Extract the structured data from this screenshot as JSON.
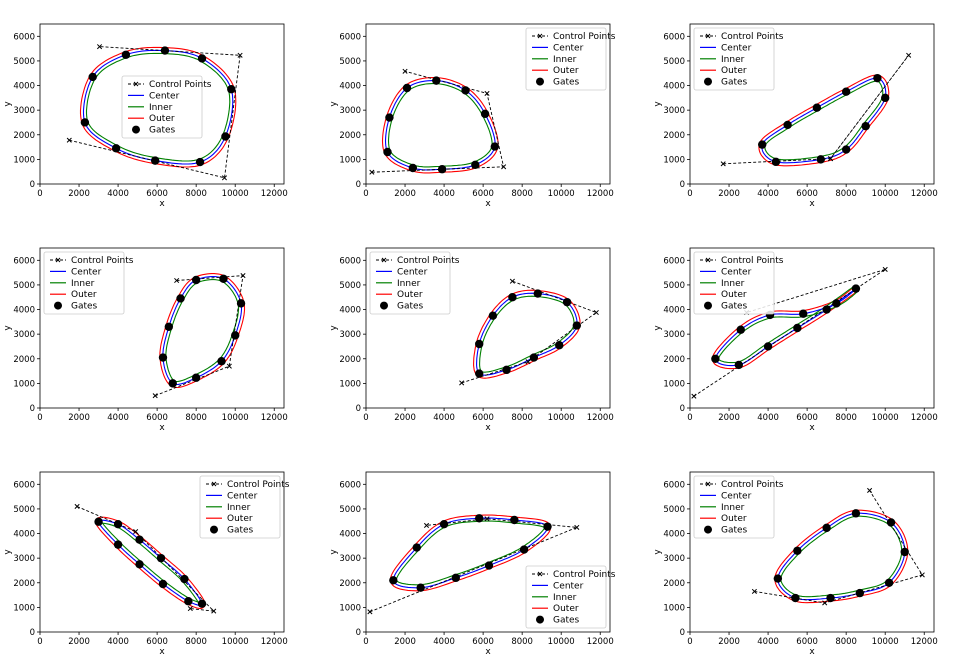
{
  "figure": {
    "legend_labels": {
      "control": "Control Points",
      "center": "Center",
      "inner": "Inner",
      "outer": "Outer",
      "gates": "Gates"
    },
    "colors": {
      "control": "#000000",
      "center": "#0000ff",
      "inner": "#008000",
      "outer": "#ff0000",
      "gates": "#000000"
    }
  },
  "chart_data": [
    {
      "type": "line",
      "xlabel": "x",
      "ylabel": "y",
      "xlim": [
        0,
        12500
      ],
      "ylim": [
        0,
        6500
      ],
      "xticks": [
        0,
        2000,
        4000,
        6000,
        8000,
        10000,
        12000
      ],
      "yticks": [
        0,
        1000,
        2000,
        3000,
        4000,
        5000,
        6000
      ],
      "legend_position": "center",
      "control_points": [
        [
          1500,
          1780
        ],
        [
          9450,
          250
        ],
        [
          10250,
          5230
        ],
        [
          3050,
          5580
        ]
      ],
      "gates": [
        [
          2300,
          2500
        ],
        [
          2700,
          4350
        ],
        [
          4400,
          5250
        ],
        [
          6400,
          5420
        ],
        [
          8300,
          5100
        ],
        [
          9800,
          3850
        ],
        [
          9500,
          1930
        ],
        [
          8200,
          890
        ],
        [
          5900,
          950
        ],
        [
          3900,
          1450
        ]
      ]
    },
    {
      "type": "line",
      "xlabel": "x",
      "ylabel": "y",
      "xlim": [
        0,
        12500
      ],
      "ylim": [
        0,
        6500
      ],
      "xticks": [
        0,
        2000,
        4000,
        6000,
        8000,
        10000,
        12000
      ],
      "yticks": [
        0,
        1000,
        2000,
        3000,
        4000,
        5000,
        6000
      ],
      "legend_position": "top-right",
      "control_points": [
        [
          300,
          480
        ],
        [
          7050,
          700
        ],
        [
          6200,
          3680
        ],
        [
          2000,
          4580
        ]
      ],
      "gates": [
        [
          1100,
          1300
        ],
        [
          1200,
          2700
        ],
        [
          2100,
          3900
        ],
        [
          3600,
          4200
        ],
        [
          5100,
          3800
        ],
        [
          6100,
          2850
        ],
        [
          6600,
          1520
        ],
        [
          5600,
          780
        ],
        [
          3900,
          600
        ],
        [
          2400,
          650
        ]
      ]
    },
    {
      "type": "line",
      "xlabel": "x",
      "ylabel": "y",
      "xlim": [
        0,
        12500
      ],
      "ylim": [
        0,
        6500
      ],
      "xticks": [
        0,
        2000,
        4000,
        6000,
        8000,
        10000,
        12000
      ],
      "yticks": [
        0,
        1000,
        2000,
        3000,
        4000,
        5000,
        6000
      ],
      "legend_position": "top-left",
      "control_points": [
        [
          1700,
          820
        ],
        [
          7200,
          1030
        ],
        [
          11200,
          5230
        ],
        [
          7200,
          1030
        ]
      ],
      "gates": [
        [
          3700,
          1600
        ],
        [
          5000,
          2400
        ],
        [
          6500,
          3100
        ],
        [
          8000,
          3750
        ],
        [
          9600,
          4300
        ],
        [
          10000,
          3500
        ],
        [
          9000,
          2350
        ],
        [
          8000,
          1400
        ],
        [
          6700,
          1000
        ],
        [
          4400,
          900
        ]
      ]
    },
    {
      "type": "line",
      "xlabel": "x",
      "ylabel": "y",
      "xlim": [
        0,
        12500
      ],
      "ylim": [
        0,
        6500
      ],
      "xticks": [
        0,
        2000,
        4000,
        6000,
        8000,
        10000,
        12000
      ],
      "yticks": [
        0,
        1000,
        2000,
        3000,
        4000,
        5000,
        6000
      ],
      "legend_position": "top-left",
      "control_points": [
        [
          5900,
          500
        ],
        [
          9700,
          1700
        ],
        [
          10400,
          5380
        ],
        [
          7000,
          5180
        ]
      ],
      "gates": [
        [
          6800,
          1000
        ],
        [
          8000,
          1230
        ],
        [
          9300,
          1900
        ],
        [
          10000,
          2950
        ],
        [
          10300,
          4250
        ],
        [
          9400,
          5250
        ],
        [
          8000,
          5200
        ],
        [
          7200,
          4450
        ],
        [
          6600,
          3300
        ],
        [
          6300,
          2050
        ]
      ]
    },
    {
      "type": "line",
      "xlabel": "x",
      "ylabel": "y",
      "xlim": [
        0,
        12500
      ],
      "ylim": [
        0,
        6500
      ],
      "xticks": [
        0,
        2000,
        4000,
        6000,
        8000,
        10000,
        12000
      ],
      "yticks": [
        0,
        1000,
        2000,
        3000,
        4000,
        5000,
        6000
      ],
      "legend_position": "top-left",
      "control_points": [
        [
          4900,
          1020
        ],
        [
          8300,
          1880
        ],
        [
          11800,
          3880
        ],
        [
          7500,
          5150
        ]
      ],
      "gates": [
        [
          5800,
          1400
        ],
        [
          7200,
          1550
        ],
        [
          8600,
          2050
        ],
        [
          9900,
          2550
        ],
        [
          10800,
          3350
        ],
        [
          10300,
          4300
        ],
        [
          8800,
          4650
        ],
        [
          7500,
          4500
        ],
        [
          6500,
          3750
        ],
        [
          5800,
          2600
        ]
      ]
    },
    {
      "type": "line",
      "xlabel": "x",
      "ylabel": "y",
      "xlim": [
        0,
        12500
      ],
      "ylim": [
        0,
        6500
      ],
      "xticks": [
        0,
        2000,
        4000,
        6000,
        8000,
        10000,
        12000
      ],
      "yticks": [
        0,
        1000,
        2000,
        3000,
        4000,
        5000,
        6000
      ],
      "legend_position": "top-left",
      "control_points": [
        [
          200,
          480
        ],
        [
          10000,
          5630
        ],
        [
          2900,
          3880
        ]
      ],
      "gates": [
        [
          1300,
          2000
        ],
        [
          2500,
          1750
        ],
        [
          4000,
          2500
        ],
        [
          5500,
          3250
        ],
        [
          7000,
          4000
        ],
        [
          8500,
          4850
        ],
        [
          7500,
          4250
        ],
        [
          5800,
          3830
        ],
        [
          4100,
          3780
        ],
        [
          2600,
          3180
        ]
      ]
    },
    {
      "type": "line",
      "xlabel": "x",
      "ylabel": "y",
      "xlim": [
        0,
        12500
      ],
      "ylim": [
        0,
        6500
      ],
      "xticks": [
        0,
        2000,
        4000,
        6000,
        8000,
        10000,
        12000
      ],
      "yticks": [
        0,
        1000,
        2000,
        3000,
        4000,
        5000,
        6000
      ],
      "legend_position": "top-right",
      "control_points": [
        [
          1900,
          5100
        ],
        [
          4900,
          4080
        ],
        [
          8900,
          850
        ],
        [
          7700,
          950
        ]
      ],
      "gates": [
        [
          3000,
          4480
        ],
        [
          4000,
          4380
        ],
        [
          5100,
          3750
        ],
        [
          6200,
          3000
        ],
        [
          7400,
          2150
        ],
        [
          8300,
          1150
        ],
        [
          7600,
          1250
        ],
        [
          6300,
          1950
        ],
        [
          5100,
          2750
        ],
        [
          4000,
          3550
        ]
      ]
    },
    {
      "type": "line",
      "xlabel": "x",
      "ylabel": "y",
      "xlim": [
        0,
        12500
      ],
      "ylim": [
        0,
        6500
      ],
      "xticks": [
        0,
        2000,
        4000,
        6000,
        8000,
        10000,
        12000
      ],
      "yticks": [
        0,
        1000,
        2000,
        3000,
        4000,
        5000,
        6000
      ],
      "legend_position": "bottom-right",
      "control_points": [
        [
          200,
          820
        ],
        [
          10800,
          4250
        ],
        [
          6200,
          4600
        ],
        [
          3100,
          4330
        ]
      ],
      "gates": [
        [
          1400,
          2100
        ],
        [
          2800,
          1800
        ],
        [
          4600,
          2200
        ],
        [
          6300,
          2700
        ],
        [
          8100,
          3350
        ],
        [
          9300,
          4280
        ],
        [
          7600,
          4550
        ],
        [
          5800,
          4620
        ],
        [
          4000,
          4380
        ],
        [
          2600,
          3430
        ]
      ]
    },
    {
      "type": "line",
      "xlabel": "x",
      "ylabel": "y",
      "xlim": [
        0,
        12500
      ],
      "ylim": [
        0,
        6500
      ],
      "xticks": [
        0,
        2000,
        4000,
        6000,
        8000,
        10000,
        12000
      ],
      "yticks": [
        0,
        1000,
        2000,
        3000,
        4000,
        5000,
        6000
      ],
      "legend_position": "top-left",
      "control_points": [
        [
          3300,
          1650
        ],
        [
          6900,
          1180
        ],
        [
          11900,
          2320
        ],
        [
          9200,
          5750
        ]
      ],
      "gates": [
        [
          4500,
          2170
        ],
        [
          5400,
          1380
        ],
        [
          7200,
          1380
        ],
        [
          8700,
          1580
        ],
        [
          10200,
          2000
        ],
        [
          11000,
          3250
        ],
        [
          10300,
          4450
        ],
        [
          8500,
          4820
        ],
        [
          7000,
          4230
        ],
        [
          5500,
          3300
        ]
      ]
    }
  ]
}
